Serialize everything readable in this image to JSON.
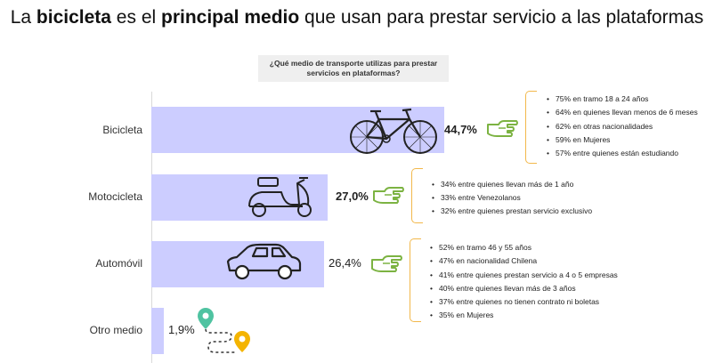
{
  "title": {
    "part1": "La ",
    "bold1": "bicicleta",
    "part2": " es el ",
    "bold2": "principal medio",
    "part3": " que usan para prestar servicio a las plataformas"
  },
  "question": "¿Qué medio de transporte utilizas para prestar servicios en plataformas?",
  "chart_data": {
    "type": "bar",
    "orientation": "horizontal",
    "categories": [
      "Bicicleta",
      "Motocicleta",
      "Automóvil",
      "Otro medio"
    ],
    "values": [
      44.7,
      27.0,
      26.4,
      1.9
    ],
    "value_labels": [
      "44,7%",
      "27,0%",
      "26,4%",
      "1,9%"
    ],
    "xlim": [
      0,
      50
    ],
    "grid": false,
    "bar_color": "#cccdff"
  },
  "notes": {
    "bicicleta": [
      "75% en tramo 18 a 24 años",
      "64% en quienes llevan menos de 6 meses",
      "62% en otras nacionalidades",
      "59% en Mujeres",
      "57% entre quienes están estudiando"
    ],
    "motocicleta": [
      "34% entre quienes llevan más de 1 año",
      "33% entre Venezolanos",
      "32% entre quienes prestan servicio exclusivo"
    ],
    "automovil": [
      "52% en tramo 46 y 55 años",
      "47% en nacionalidad Chilena",
      "41% entre quienes prestan servicio a 4 o 5 empresas",
      "40% entre quienes llevan más de 3 años",
      "37% entre quienes no tienen contrato ni boletas",
      "35% en Mujeres"
    ]
  },
  "colors": {
    "bar": "#cccdff",
    "hand": "#7cb342",
    "bracket": "#f2b84b",
    "pin_green": "#4fc3a1",
    "pin_yellow": "#f4b400"
  },
  "icons": [
    "bicycle-icon",
    "scooter-icon",
    "car-icon",
    "pointing-hand-icon",
    "location-pin-icon"
  ]
}
